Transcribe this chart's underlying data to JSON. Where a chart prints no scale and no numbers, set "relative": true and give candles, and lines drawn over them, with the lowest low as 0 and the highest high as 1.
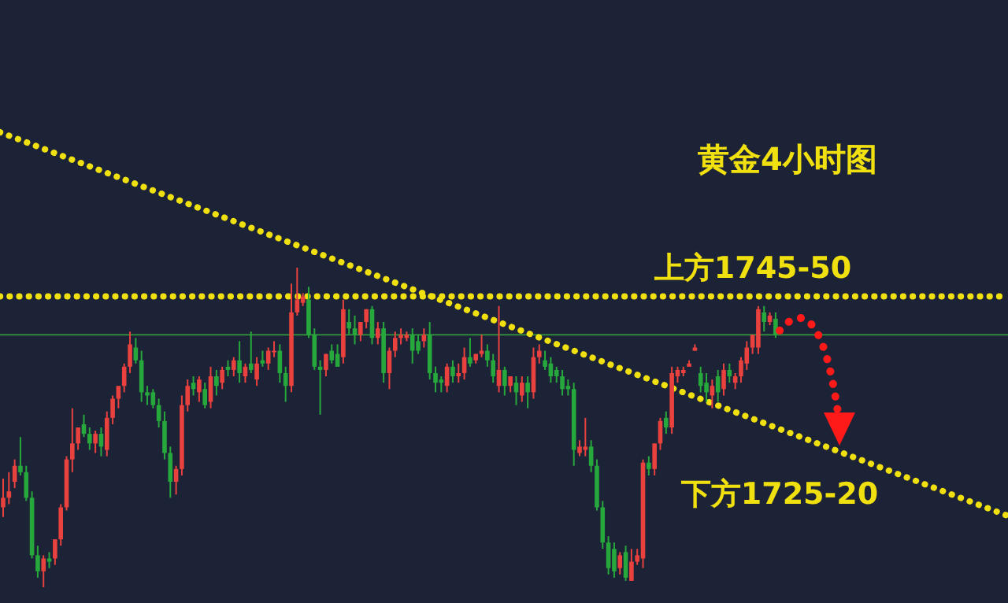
{
  "chart_data": {
    "type": "candlestick",
    "relative": true,
    "title": "黄金4小时图",
    "categories": [
      null,
      null,
      null,
      null,
      null,
      null,
      null,
      null,
      null,
      null,
      null,
      null,
      null,
      null,
      null,
      null,
      null,
      null,
      null,
      null,
      null,
      null,
      null,
      null,
      null,
      null,
      null,
      null,
      null,
      null,
      null,
      null,
      null,
      null,
      null,
      null,
      null,
      null,
      null,
      null,
      null,
      null,
      null,
      null,
      null,
      null,
      null,
      null,
      null,
      null,
      null,
      null,
      null,
      null,
      null,
      null,
      null,
      null,
      null,
      null,
      null,
      null,
      null,
      null,
      null,
      null,
      null,
      null,
      null,
      null,
      null,
      null,
      null,
      null,
      null,
      null,
      null,
      null,
      null,
      null,
      null,
      null,
      null,
      null,
      null,
      null,
      null,
      null,
      null,
      null,
      null,
      null,
      null,
      null,
      null,
      null,
      null,
      null,
      null,
      null,
      null,
      null,
      null,
      null,
      null,
      null,
      null,
      null,
      null,
      null,
      null,
      null,
      null,
      null,
      null,
      null,
      null,
      null,
      null,
      null,
      null,
      null,
      null,
      null,
      null,
      null,
      null,
      null,
      null,
      null,
      null,
      null,
      null,
      null,
      null
    ],
    "ohlc": [
      [
        0.25,
        0.34,
        0.22,
        0.28
      ],
      [
        0.28,
        0.36,
        0.26,
        0.3
      ],
      [
        0.33,
        0.4,
        0.31,
        0.38
      ],
      [
        0.38,
        0.47,
        0.35,
        0.36
      ],
      [
        0.36,
        0.38,
        0.27,
        0.28
      ],
      [
        0.28,
        0.3,
        0.09,
        0.1
      ],
      [
        0.1,
        0.13,
        0.03,
        0.05
      ],
      [
        0.05,
        0.1,
        0,
        0.09
      ],
      [
        0.09,
        0.11,
        0.06,
        0.08
      ],
      [
        0.09,
        0.15,
        0.07,
        0.15
      ],
      [
        0.15,
        0.26,
        0.13,
        0.25
      ],
      [
        0.25,
        0.41,
        0.24,
        0.4
      ],
      [
        0.4,
        0.56,
        0.36,
        0.45
      ],
      [
        0.45,
        0.5,
        0.43,
        0.5
      ],
      [
        0.51,
        0.54,
        0.47,
        0.48
      ],
      [
        0.48,
        0.5,
        0.43,
        0.45
      ],
      [
        0.45,
        0.49,
        0.42,
        0.48
      ],
      [
        0.48,
        0.5,
        0.41,
        0.44
      ],
      [
        0.43,
        0.55,
        0.41,
        0.53
      ],
      [
        0.53,
        0.6,
        0.51,
        0.59
      ],
      [
        0.59,
        0.63,
        0.56,
        0.63
      ],
      [
        0.63,
        0.7,
        0.61,
        0.69
      ],
      [
        0.69,
        0.8,
        0.67,
        0.76
      ],
      [
        0.75,
        0.78,
        0.7,
        0.71
      ],
      [
        0.71,
        0.74,
        0.58,
        0.61
      ],
      [
        0.61,
        0.63,
        0.57,
        0.6
      ],
      [
        0.61,
        0.62,
        0.56,
        0.57
      ],
      [
        0.57,
        0.59,
        0.5,
        0.52
      ],
      [
        0.52,
        0.55,
        0.4,
        0.42
      ],
      [
        0.42,
        0.44,
        0.28,
        0.33
      ],
      [
        0.33,
        0.38,
        0.29,
        0.37
      ],
      [
        0.37,
        0.6,
        0.35,
        0.57
      ],
      [
        0.57,
        0.65,
        0.55,
        0.63
      ],
      [
        0.64,
        0.66,
        0.6,
        0.62
      ],
      [
        0.61,
        0.66,
        0.58,
        0.65
      ],
      [
        0.62,
        0.64,
        0.56,
        0.57
      ],
      [
        0.58,
        0.69,
        0.56,
        0.66
      ],
      [
        0.66,
        0.68,
        0.6,
        0.63
      ],
      [
        0.64,
        0.69,
        0.62,
        0.68
      ],
      [
        0.69,
        0.71,
        0.66,
        0.68
      ],
      [
        0.68,
        0.72,
        0.66,
        0.71
      ],
      [
        0.71,
        0.77,
        0.64,
        0.67
      ],
      [
        0.66,
        0.7,
        0.64,
        0.69
      ],
      [
        0.7,
        0.8,
        0.67,
        0.68
      ],
      [
        0.65,
        0.72,
        0.63,
        0.7
      ],
      [
        0.71,
        0.74,
        0.69,
        0.7
      ],
      [
        0.7,
        0.75,
        0.68,
        0.74
      ],
      [
        0.74,
        0.77,
        0.72,
        0.74
      ],
      [
        0.74,
        0.76,
        0.64,
        0.67
      ],
      [
        0.67,
        0.69,
        0.58,
        0.63
      ],
      [
        0.63,
        0.95,
        0.61,
        0.86
      ],
      [
        0.86,
        1.0,
        0.85,
        0.9
      ],
      [
        0.89,
        0.92,
        0.88,
        0.91
      ],
      [
        0.9,
        0.94,
        0.78,
        0.79
      ],
      [
        0.79,
        0.81,
        0.68,
        0.69
      ],
      [
        0.69,
        0.71,
        0.54,
        0.68
      ],
      [
        0.68,
        0.73,
        0.66,
        0.73
      ],
      [
        0.74,
        0.76,
        0.7,
        0.71
      ],
      [
        0.73,
        0.76,
        0.69,
        0.69
      ],
      [
        0.72,
        0.9,
        0.7,
        0.87
      ],
      [
        0.83,
        0.87,
        0.79,
        0.81
      ],
      [
        0.81,
        0.85,
        0.76,
        0.79
      ],
      [
        0.79,
        0.83,
        0.77,
        0.83
      ],
      [
        0.83,
        0.87,
        0.81,
        0.87
      ],
      [
        0.87,
        0.88,
        0.76,
        0.78
      ],
      [
        0.78,
        0.83,
        0.76,
        0.81
      ],
      [
        0.81,
        0.83,
        0.64,
        0.67
      ],
      [
        0.67,
        0.75,
        0.62,
        0.74
      ],
      [
        0.74,
        0.8,
        0.72,
        0.78
      ],
      [
        0.78,
        0.81,
        0.76,
        0.79
      ],
      [
        0.78,
        0.8,
        0.77,
        0.79
      ],
      [
        0.79,
        0.81,
        0.7,
        0.74
      ],
      [
        0.77,
        0.79,
        0.73,
        0.74
      ],
      [
        0.77,
        0.81,
        0.75,
        0.79
      ],
      [
        0.79,
        0.83,
        0.65,
        0.67
      ],
      [
        0.67,
        0.69,
        0.61,
        0.64
      ],
      [
        0.65,
        0.66,
        0.61,
        0.64
      ],
      [
        0.63,
        0.7,
        0.61,
        0.69
      ],
      [
        0.69,
        0.71,
        0.64,
        0.66
      ],
      [
        0.66,
        0.7,
        0.64,
        0.67
      ],
      [
        0.67,
        0.75,
        0.65,
        0.72
      ],
      [
        0.72,
        0.78,
        0.69,
        0.7
      ],
      [
        0.71,
        0.73,
        0.7,
        0.73
      ],
      [
        0.73,
        0.79,
        0.72,
        0.74
      ],
      [
        0.74,
        0.76,
        0.69,
        0.71
      ],
      [
        0.71,
        0.73,
        0.64,
        0.66
      ],
      [
        0.63,
        0.88,
        0.61,
        0.68
      ],
      [
        0.68,
        0.69,
        0.6,
        0.63
      ],
      [
        0.63,
        0.66,
        0.61,
        0.66
      ],
      [
        0.64,
        0.66,
        0.57,
        0.61
      ],
      [
        0.6,
        0.66,
        0.58,
        0.64
      ],
      [
        0.64,
        0.66,
        0.56,
        0.61
      ],
      [
        0.61,
        0.75,
        0.59,
        0.72
      ],
      [
        0.72,
        0.76,
        0.7,
        0.74
      ],
      [
        0.71,
        0.74,
        0.68,
        0.69
      ],
      [
        0.7,
        0.72,
        0.64,
        0.66
      ],
      [
        0.68,
        0.69,
        0.64,
        0.66
      ],
      [
        0.66,
        0.68,
        0.6,
        0.62
      ],
      [
        0.63,
        0.65,
        0.6,
        0.62
      ],
      [
        0.62,
        0.64,
        0.38,
        0.43
      ],
      [
        0.42,
        0.46,
        0.41,
        0.44
      ],
      [
        0.43,
        0.53,
        0.41,
        0.44
      ],
      [
        0.44,
        0.46,
        0.36,
        0.38
      ],
      [
        0.38,
        0.4,
        0.24,
        0.25
      ],
      [
        0.25,
        0.27,
        0.12,
        0.14
      ],
      [
        0.14,
        0.16,
        0.04,
        0.06
      ],
      [
        0.12,
        0.14,
        0.03,
        0.05
      ],
      [
        0.06,
        0.11,
        0.04,
        0.1
      ],
      [
        0.11,
        0.13,
        0.02,
        0.03
      ],
      [
        0.02,
        0.12,
        0.02,
        0.08
      ],
      [
        0.08,
        0.12,
        0.07,
        0.1
      ],
      [
        0.09,
        0.4,
        0.06,
        0.39
      ],
      [
        0.39,
        0.41,
        0.35,
        0.37
      ],
      [
        0.37,
        0.45,
        0.35,
        0.45
      ],
      [
        0.45,
        0.53,
        0.43,
        0.52
      ],
      [
        0.53,
        0.55,
        0.48,
        0.5
      ],
      [
        0.5,
        0.69,
        0.48,
        0.67
      ],
      [
        0.66,
        0.69,
        0.64,
        0.68
      ],
      [
        0.67,
        0.69,
        0.66,
        0.68
      ],
      [
        0.69,
        0.71,
        0.69,
        0.7
      ],
      [
        0.74,
        0.76,
        0.74,
        0.75
      ],
      [
        0.67,
        0.69,
        0.61,
        0.63
      ],
      [
        0.64,
        0.67,
        0.58,
        0.61
      ],
      [
        0.6,
        0.65,
        0.56,
        0.63
      ],
      [
        0.66,
        0.68,
        0.58,
        0.61
      ],
      [
        0.62,
        0.7,
        0.6,
        0.68
      ],
      [
        0.68,
        0.7,
        0.64,
        0.66
      ],
      [
        0.64,
        0.67,
        0.62,
        0.66
      ],
      [
        0.66,
        0.72,
        0.64,
        0.71
      ],
      [
        0.7,
        0.77,
        0.68,
        0.75
      ],
      [
        0.75,
        0.79,
        0.73,
        0.79
      ],
      [
        0.75,
        0.88,
        0.73,
        0.87
      ],
      [
        0.86,
        0.88,
        0.8,
        0.83
      ],
      [
        0.83,
        0.86,
        0.82,
        0.85
      ],
      [
        0.84,
        0.86,
        0.78,
        0.79
      ]
    ],
    "series": [
      {
        "type": "line",
        "values": [
          1.42,
          null,
          null,
          null,
          null,
          null,
          null,
          null,
          null,
          null,
          null,
          null,
          null,
          null,
          null,
          null,
          null,
          null,
          null,
          null,
          null,
          null,
          null,
          null,
          null,
          null,
          null,
          null,
          null,
          null,
          null,
          null,
          null,
          null,
          null,
          null,
          null,
          null,
          null,
          null,
          null,
          null,
          null,
          null,
          null,
          null,
          null,
          null,
          null,
          null,
          null,
          null,
          null,
          null,
          null,
          null,
          null,
          null,
          null,
          null,
          null,
          null,
          null,
          null,
          null,
          null,
          null,
          null,
          null,
          null,
          null,
          null,
          null,
          null,
          null,
          null,
          null,
          null,
          null,
          null,
          null,
          null,
          null,
          null,
          null,
          null,
          null,
          null,
          null,
          null,
          null,
          null,
          null,
          null,
          null,
          null,
          null,
          null,
          null,
          null,
          null,
          null,
          null,
          null,
          null,
          null,
          null,
          null,
          null,
          null,
          null,
          null,
          null,
          null,
          null,
          null,
          null,
          null,
          null,
          null,
          null,
          null,
          null,
          null,
          null,
          null,
          null,
          null,
          null,
          null,
          null,
          null,
          null,
          null,
          0.5
        ],
        "color": "#f0e010",
        "line_style": "dotted"
      }
    ],
    "ref_lines": [
      {
        "axis": "y",
        "value": 0.91,
        "color": "#f0e010",
        "line_style": "dotted"
      },
      {
        "axis": "y",
        "value": 0.79,
        "color": "#2f8a3c",
        "line_style": "solid"
      }
    ],
    "annotations": [
      "上方1745-50",
      "下方1725-20"
    ]
  }
}
